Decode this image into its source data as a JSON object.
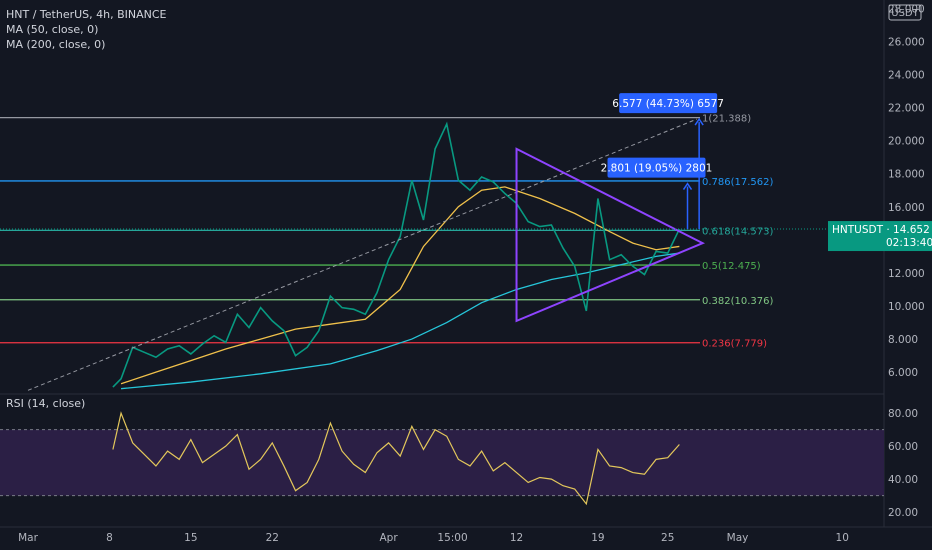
{
  "legend": {
    "symbol": "HNT / TetherUS, 4h, BINANCE",
    "ma50": "MA (50, close, 0)",
    "ma200": "MA (200, close, 0)",
    "rsi": "RSI (14, close)"
  },
  "chart_data": {
    "type": "line",
    "price_axis": {
      "currency": "USDT",
      "ticks": [
        "28.000",
        "26.000",
        "24.000",
        "22.000",
        "20.000",
        "18.000",
        "16.000",
        "14.000",
        "12.000",
        "10.000",
        "8.000",
        "6.000"
      ],
      "range": [
        4.8,
        28.5
      ]
    },
    "rsi_axis": {
      "ticks": [
        "80.00",
        "60.00",
        "40.00",
        "20.00"
      ],
      "range": [
        14,
        88
      ],
      "band": [
        30,
        70
      ]
    },
    "time_axis": {
      "ticks": [
        {
          "label": "Mar",
          "day": 1
        },
        {
          "label": "8",
          "day": 8
        },
        {
          "label": "15",
          "day": 15
        },
        {
          "label": "22",
          "day": 22
        },
        {
          "label": "Apr",
          "day": 32
        },
        {
          "label": "15:00",
          "day": 37.5
        },
        {
          "label": "12",
          "day": 43
        },
        {
          "label": "19",
          "day": 50
        },
        {
          "label": "25",
          "day": 56
        },
        {
          "label": "May",
          "day": 62
        },
        {
          "label": "10",
          "day": 71
        }
      ],
      "range": [
        1,
        77
      ]
    },
    "price_line": {
      "days": [
        8.3,
        9,
        10,
        11,
        12,
        13,
        14,
        15,
        16,
        17,
        18,
        19,
        20,
        21,
        22,
        23,
        24,
        25,
        26,
        27,
        28,
        29,
        30,
        31,
        32,
        33,
        34,
        35,
        36,
        37,
        38,
        39,
        40,
        41,
        42,
        43,
        44,
        45,
        46,
        47,
        48,
        49,
        50,
        51,
        52,
        53,
        54,
        55,
        56,
        57
      ],
      "values": [
        5.1,
        5.6,
        7.5,
        7.2,
        6.9,
        7.4,
        7.6,
        7.1,
        7.7,
        8.2,
        7.8,
        9.5,
        8.7,
        9.9,
        9.1,
        8.5,
        7.0,
        7.5,
        8.5,
        10.6,
        9.9,
        9.8,
        9.5,
        10.8,
        12.8,
        14.2,
        17.6,
        15.2,
        19.5,
        21.0,
        17.6,
        17.0,
        17.8,
        17.5,
        16.8,
        16.2,
        15.1,
        14.8,
        14.9,
        13.5,
        12.4,
        9.7,
        16.5,
        12.8,
        13.1,
        12.4,
        11.9,
        13.3,
        13.2,
        14.652
      ]
    },
    "ma50": {
      "days": [
        9,
        12,
        15,
        18,
        21,
        24,
        27,
        30,
        33,
        35,
        38,
        40,
        42,
        45,
        48,
        51,
        53,
        55,
        57
      ],
      "values": [
        5.3,
        6.0,
        6.7,
        7.4,
        8.0,
        8.6,
        8.9,
        9.2,
        11.0,
        13.6,
        16.0,
        17.0,
        17.2,
        16.5,
        15.6,
        14.5,
        13.8,
        13.4,
        13.6
      ]
    },
    "ma200": {
      "days": [
        9,
        15,
        21,
        27,
        31,
        34,
        37,
        40,
        43,
        46,
        49,
        52,
        55,
        57
      ],
      "values": [
        5.0,
        5.4,
        5.9,
        6.5,
        7.3,
        8.0,
        9.0,
        10.2,
        11.0,
        11.6,
        12.0,
        12.5,
        13.0,
        13.2
      ]
    },
    "rsi": {
      "days": [
        8.3,
        9,
        10,
        11,
        12,
        13,
        14,
        15,
        16,
        17,
        18,
        19,
        20,
        21,
        22,
        23,
        24,
        25,
        26,
        27,
        28,
        29,
        30,
        31,
        32,
        33,
        34,
        35,
        36,
        37,
        38,
        39,
        40,
        41,
        42,
        43,
        44,
        45,
        46,
        47,
        48,
        49,
        50,
        51,
        52,
        53,
        54,
        55,
        56,
        57
      ],
      "values": [
        58,
        80,
        62,
        55,
        48,
        57,
        52,
        64,
        50,
        55,
        60,
        67,
        46,
        52,
        62,
        48,
        33,
        38,
        52,
        74,
        57,
        49,
        44,
        56,
        62,
        54,
        72,
        58,
        70,
        66,
        52,
        48,
        57,
        45,
        50,
        44,
        38,
        41,
        40,
        36,
        34,
        25,
        58,
        48,
        47,
        44,
        43,
        52,
        53,
        61
      ]
    },
    "fib_levels": [
      {
        "ratio": "1",
        "label": "1(21.388)",
        "value": 21.388,
        "color": "#9598a1"
      },
      {
        "ratio": "0.786",
        "label": "0.786(17.562)",
        "value": 17.562,
        "color": "#2196f3"
      },
      {
        "ratio": "0.618",
        "label": "0.618(14.573)",
        "value": 14.573,
        "color": "#26a69a"
      },
      {
        "ratio": "0.5",
        "label": "0.5(12.475)",
        "value": 12.475,
        "color": "#4caf50"
      },
      {
        "ratio": "0.382",
        "label": "0.382(10.376)",
        "value": 10.376,
        "color": "#81c784"
      },
      {
        "ratio": "0.236",
        "label": "0.236(7.779)",
        "value": 7.779,
        "color": "#f23645"
      }
    ],
    "triangle": [
      {
        "day": 43,
        "value": 19.5
      },
      {
        "day": 59,
        "value": 13.8
      },
      {
        "day": 43,
        "value": 9.1
      }
    ],
    "trendline": [
      {
        "day": 1,
        "value": 4.9
      },
      {
        "day": 58.5,
        "value": 21.3
      }
    ],
    "measurements": [
      {
        "label": "2.801 (19.05%) 2801",
        "day": 57.7,
        "from": 14.652,
        "to": 17.4
      },
      {
        "label": "6.577 (44.73%) 6577",
        "day": 58.7,
        "from": 14.652,
        "to": 21.3
      }
    ],
    "last_price": {
      "label": "HNTUSDT · 14.652",
      "value": 14.652,
      "countdown": "02:13:40"
    },
    "colors": {
      "background": "#131722",
      "price": "#089981",
      "ma50": "#f0c14b",
      "ma200": "#26c6da",
      "rsi": "#e3c75b",
      "rsi_band": "#2b1f45",
      "triangle": "#8e44ff",
      "measure": "#2962ff"
    }
  }
}
